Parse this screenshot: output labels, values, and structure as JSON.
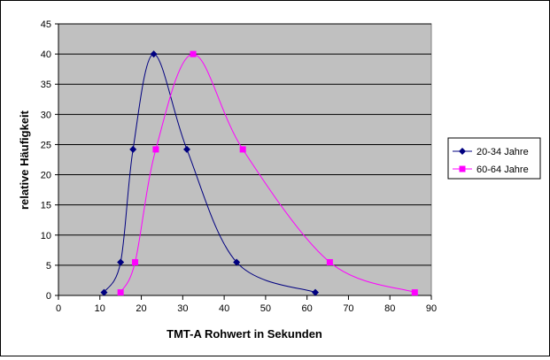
{
  "chart_data": {
    "type": "line",
    "title": "",
    "xlabel": "TMT-A Rohwert in Sekunden",
    "ylabel": "relative Häufigkeit",
    "xlim": [
      0,
      90
    ],
    "ylim": [
      0,
      45
    ],
    "x_ticks": [
      0,
      10,
      20,
      30,
      40,
      50,
      60,
      70,
      80,
      90
    ],
    "y_ticks": [
      0,
      5,
      10,
      15,
      20,
      25,
      30,
      35,
      40,
      45
    ],
    "grid": "horizontal",
    "plot_background": "#C0C0C0",
    "legend_position": "right",
    "series": [
      {
        "name": "20-34 Jahre",
        "color": "#000080",
        "marker": "diamond",
        "points": [
          [
            11,
            0.5
          ],
          [
            15,
            5.5
          ],
          [
            18,
            24.2
          ],
          [
            23,
            40
          ],
          [
            31,
            24.2
          ],
          [
            43,
            5.5
          ],
          [
            62,
            0.5
          ]
        ]
      },
      {
        "name": "60-64 Jahre",
        "color": "#FF00FF",
        "marker": "square",
        "points": [
          [
            15,
            0.5
          ],
          [
            18.5,
            5.5
          ],
          [
            23.5,
            24.2
          ],
          [
            32.5,
            40
          ],
          [
            44.5,
            24.2
          ],
          [
            65.5,
            5.5
          ],
          [
            86,
            0.5
          ]
        ]
      }
    ]
  }
}
